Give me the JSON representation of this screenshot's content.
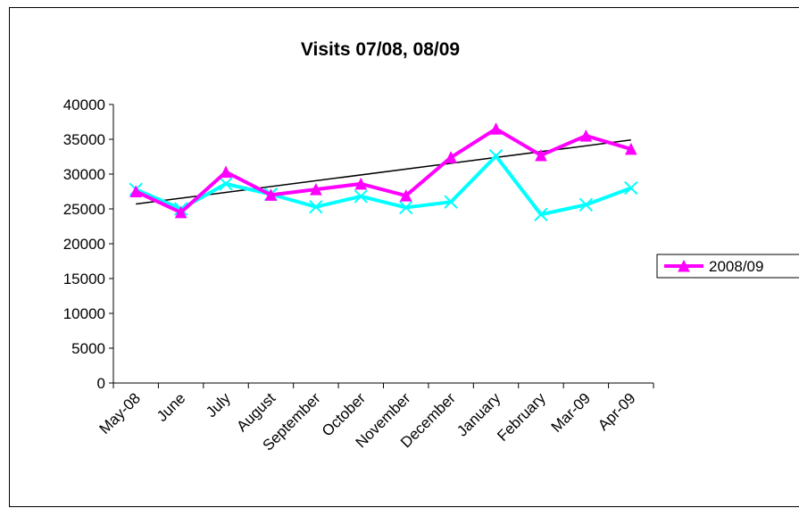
{
  "chart_data": {
    "type": "line",
    "title": "Visits 07/08, 08/09",
    "categories": [
      "May-08",
      "June",
      "July",
      "August",
      "September",
      "October",
      "November",
      "December",
      "January",
      "February",
      "Mar-09",
      "Apr-09"
    ],
    "ylim": [
      0,
      40000
    ],
    "yticks": [
      0,
      5000,
      10000,
      15000,
      20000,
      25000,
      30000,
      35000,
      40000
    ],
    "series": [
      {
        "name": "2008/09",
        "color": "#ff00ff",
        "marker": "triangle",
        "values": [
          27500,
          24500,
          30300,
          27000,
          27800,
          28600,
          26900,
          32400,
          36500,
          32700,
          35500,
          33600
        ]
      },
      {
        "name": "",
        "color": "#00ffff",
        "marker": "x",
        "values": [
          27800,
          25000,
          28600,
          27100,
          25300,
          26800,
          25200,
          26000,
          32600,
          24200,
          25600,
          28000
        ]
      }
    ],
    "trendline": {
      "series": "2008/09",
      "color": "#000000",
      "start": 25700,
      "end": 34900
    },
    "legend": {
      "placement": "right",
      "entries": [
        "2008/09"
      ]
    },
    "grid": false
  }
}
